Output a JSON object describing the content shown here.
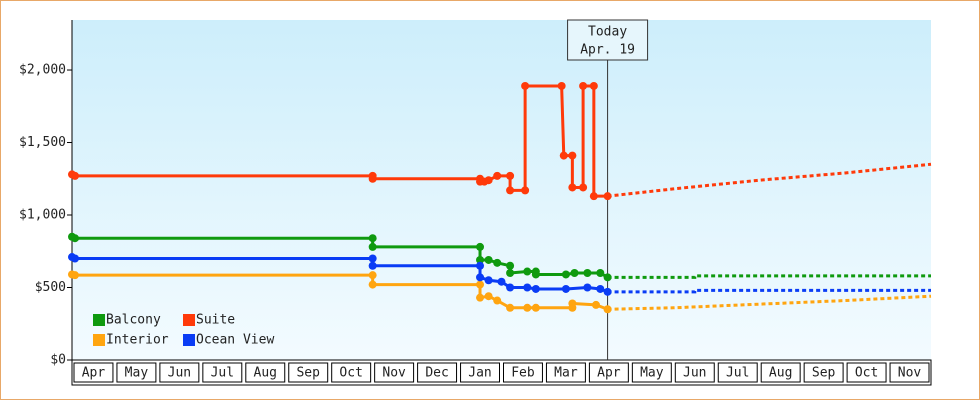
{
  "chart_data": {
    "type": "line",
    "xlim": [
      0,
      20
    ],
    "ylim": [
      0,
      2345
    ],
    "yticks": [
      {
        "value": 0,
        "label": "$0"
      },
      {
        "value": 500,
        "label": "$500"
      },
      {
        "value": 1000,
        "label": "$1,000"
      },
      {
        "value": 1500,
        "label": "$1,500"
      },
      {
        "value": 2000,
        "label": "$2,000"
      }
    ],
    "xticks": [
      {
        "value": 0.5,
        "label": "Apr"
      },
      {
        "value": 1.5,
        "label": "May"
      },
      {
        "value": 2.5,
        "label": "Jun"
      },
      {
        "value": 3.5,
        "label": "Jul"
      },
      {
        "value": 4.5,
        "label": "Aug"
      },
      {
        "value": 5.5,
        "label": "Sep"
      },
      {
        "value": 6.5,
        "label": "Oct"
      },
      {
        "value": 7.5,
        "label": "Nov"
      },
      {
        "value": 8.5,
        "label": "Dec"
      },
      {
        "value": 9.5,
        "label": "Jan"
      },
      {
        "value": 10.5,
        "label": "Feb"
      },
      {
        "value": 11.5,
        "label": "Mar"
      },
      {
        "value": 12.5,
        "label": "Apr"
      },
      {
        "value": 13.5,
        "label": "May"
      },
      {
        "value": 14.5,
        "label": "Jun"
      },
      {
        "value": 15.5,
        "label": "Jul"
      },
      {
        "value": 16.5,
        "label": "Aug"
      },
      {
        "value": 17.5,
        "label": "Sep"
      },
      {
        "value": 18.5,
        "label": "Oct"
      },
      {
        "value": 19.5,
        "label": "Nov"
      }
    ],
    "annotation": {
      "x": 12.47,
      "title": "Today",
      "date": "Apr. 19"
    },
    "series": [
      {
        "name": "Balcony",
        "color": "#0f9a0f",
        "x": [
          0,
          0.07,
          7,
          7,
          9.5,
          9.5,
          9.7,
          9.9,
          10.2,
          10.2,
          10.6,
          10.8,
          10.8,
          11.5,
          11.7,
          12.0,
          12.3,
          12.47
        ],
        "values": [
          850,
          840,
          840,
          780,
          780,
          690,
          690,
          670,
          650,
          600,
          610,
          610,
          590,
          590,
          600,
          600,
          600,
          570
        ],
        "forecast_x": [
          12.47,
          14.5,
          14.5,
          20
        ],
        "forecast_values": [
          570,
          570,
          580,
          580
        ]
      },
      {
        "name": "Suite",
        "color": "#ff3a0a",
        "x": [
          0,
          0.07,
          7,
          7,
          9.5,
          9.5,
          9.6,
          9.7,
          9.9,
          10.2,
          10.2,
          10.55,
          10.55,
          11.4,
          11.45,
          11.65,
          11.65,
          11.9,
          11.9,
          12.15,
          12.15,
          12.47
        ],
        "values": [
          1280,
          1270,
          1270,
          1250,
          1250,
          1230,
          1230,
          1240,
          1270,
          1270,
          1170,
          1170,
          1890,
          1890,
          1410,
          1410,
          1190,
          1190,
          1890,
          1890,
          1130,
          1130
        ],
        "forecast_x": [
          12.47,
          14,
          16,
          18,
          20
        ],
        "forecast_values": [
          1130,
          1180,
          1240,
          1290,
          1350
        ]
      },
      {
        "name": "Interior",
        "color": "#ffa510",
        "x": [
          0,
          0.07,
          7,
          7,
          9.5,
          9.5,
          9.7,
          9.9,
          10.2,
          10.6,
          10.8,
          11.65,
          11.65,
          12.2,
          12.47
        ],
        "values": [
          590,
          585,
          585,
          520,
          520,
          430,
          440,
          410,
          360,
          360,
          360,
          360,
          390,
          380,
          350
        ],
        "forecast_x": [
          12.47,
          14,
          16,
          18,
          20
        ],
        "forecast_values": [
          350,
          360,
          385,
          410,
          440
        ]
      },
      {
        "name": "Ocean View",
        "color": "#0a3cf5",
        "x": [
          0,
          0.07,
          7,
          7,
          9.5,
          9.5,
          9.7,
          10.0,
          10.2,
          10.6,
          10.8,
          11.5,
          12.0,
          12.3,
          12.47
        ],
        "values": [
          710,
          700,
          700,
          650,
          650,
          570,
          550,
          540,
          500,
          500,
          490,
          490,
          500,
          490,
          470
        ],
        "forecast_x": [
          12.47,
          14.5,
          14.5,
          20
        ],
        "forecast_values": [
          470,
          470,
          480,
          480
        ]
      }
    ]
  }
}
